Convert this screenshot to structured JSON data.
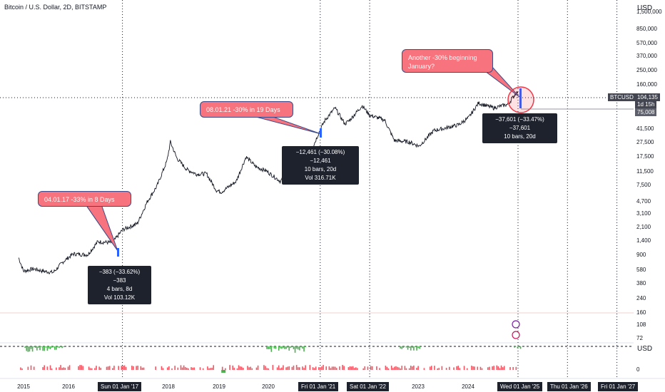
{
  "header": {
    "title": "Bitcoin / U.S. Dollar, 2D, BITSTAMP",
    "currency": "USD",
    "currency_lower": "USD"
  },
  "chart_data": {
    "type": "line",
    "title": "Bitcoin / U.S. Dollar, 2D, BITSTAMP",
    "yscale": "log",
    "grid": false,
    "x_ticks": [
      "2015",
      "2016",
      "2018",
      "2019",
      "2020",
      "2022",
      "2023",
      "2024"
    ],
    "x_labels_highlighted": [
      "Sun 01 Jan '17",
      "Fri 01 Jan '21",
      "Sat 01 Jan '22",
      "Wed 01 Jan '25",
      "Thu 01 Jan '26",
      "Fri 01 Jan '27"
    ],
    "y_ticks": [
      "1,500,000",
      "850,000",
      "570,000",
      "370,000",
      "250,000",
      "160,000",
      "75,008",
      "41,500",
      "27,500",
      "17,500",
      "11,500",
      "7,500",
      "4,700",
      "3,100",
      "2,100",
      "1,400",
      "900",
      "580",
      "380",
      "240",
      "160",
      "108",
      "72"
    ],
    "indicator_ticks": [
      "0"
    ],
    "price_label": {
      "symbol": "BTCUSD",
      "value": "104,135",
      "countdown": "1d 15h"
    },
    "level_label": "75,008",
    "series": [
      {
        "name": "BTCUSD",
        "x": [
          2014.9,
          2015.0,
          2015.2,
          2015.4,
          2015.6,
          2015.8,
          2016.0,
          2016.3,
          2016.5,
          2016.8,
          2017.0,
          2017.3,
          2017.5,
          2017.7,
          2017.9,
          2017.97,
          2018.1,
          2018.3,
          2018.5,
          2018.7,
          2018.9,
          2019.0,
          2019.3,
          2019.5,
          2019.7,
          2019.9,
          2020.2,
          2020.4,
          2020.6,
          2020.8,
          2021.0,
          2021.1,
          2021.3,
          2021.5,
          2021.6,
          2021.85,
          2022.0,
          2022.3,
          2022.5,
          2022.8,
          2023.0,
          2023.3,
          2023.5,
          2023.8,
          2024.0,
          2024.2,
          2024.5,
          2024.8,
          2024.95,
          2025.0
        ],
        "values": [
          380,
          240,
          260,
          240,
          230,
          330,
          430,
          420,
          650,
          630,
          970,
          1200,
          2500,
          4300,
          10000,
          19000,
          11000,
          7500,
          6400,
          6500,
          3700,
          3500,
          5000,
          11500,
          8200,
          7200,
          5000,
          9000,
          11000,
          13000,
          29000,
          40000,
          60000,
          35000,
          40000,
          65000,
          47000,
          40000,
          20000,
          19000,
          16500,
          28000,
          30000,
          34000,
          43000,
          71000,
          60000,
          68000,
          98000,
          104135
        ]
      }
    ],
    "annotations": [
      {
        "callout": "04.01.17 -33% in 8 Days",
        "measure": [
          "−383 (−33.62%) −383",
          "4 bars, 8d",
          "Vol 103.12K"
        ]
      },
      {
        "callout": "08.01.21 -30% in 19 Days",
        "measure": [
          "−12,461 (−30.08%) −12,461",
          "10 bars, 20d",
          "Vol 316.71K"
        ]
      },
      {
        "callout": "Another -30% beginning January?",
        "measure": [
          "−37,601 (−33.47%) −37,601",
          "10 bars, 20d"
        ]
      }
    ]
  }
}
